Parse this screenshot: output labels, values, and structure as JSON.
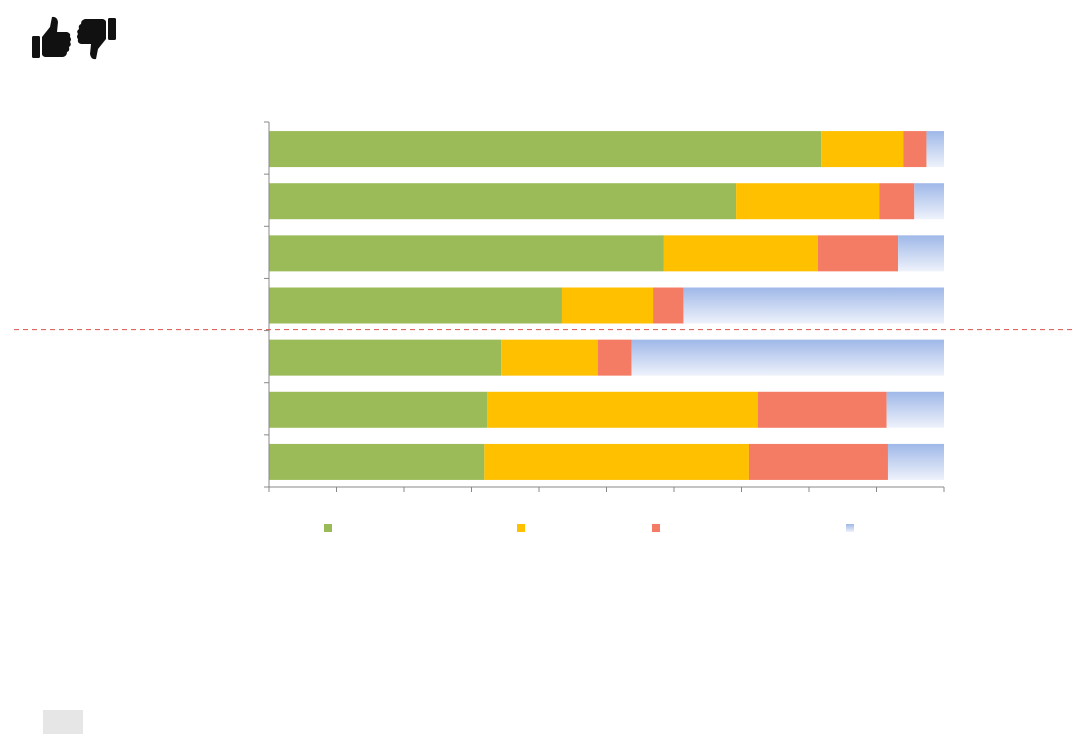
{
  "colors": {
    "positive": "#9bbb59",
    "neutral": "#ffc000",
    "negative": "#f47c64",
    "unknown_top": "#9fb8e8",
    "unknown_bottom": "#eef2fb",
    "reference_line": "#d9534f",
    "axis": "#888888",
    "icon": "#111111"
  },
  "icons": {
    "thumbs_up": "thumbs-up-icon",
    "thumbs_down": "thumbs-down-icon"
  },
  "chart_data": {
    "type": "bar",
    "orientation": "horizontal",
    "stacked": true,
    "percent_stacked": true,
    "categories": [
      "",
      "",
      "",
      "",
      "",
      "",
      ""
    ],
    "series": [
      {
        "values": [
          81.8,
          69.2,
          58.5,
          43.4,
          34.4,
          32.3,
          31.9
        ]
      },
      {
        "values": [
          12.2,
          21.2,
          22.8,
          13.5,
          14.3,
          40.1,
          39.2
        ]
      },
      {
        "values": [
          3.4,
          5.2,
          11.9,
          4.5,
          5.0,
          19.1,
          20.6
        ]
      },
      {
        "values": [
          2.6,
          4.4,
          6.8,
          38.6,
          46.3,
          8.5,
          8.3
        ]
      }
    ],
    "xlim": [
      0,
      100
    ],
    "x_ticks": [
      0,
      10,
      20,
      30,
      40,
      50,
      60,
      70,
      80,
      90,
      100
    ],
    "legend_position": "bottom",
    "reference_line": {
      "between_categories": [
        3,
        4
      ],
      "style": "dashed"
    },
    "grid": false
  }
}
